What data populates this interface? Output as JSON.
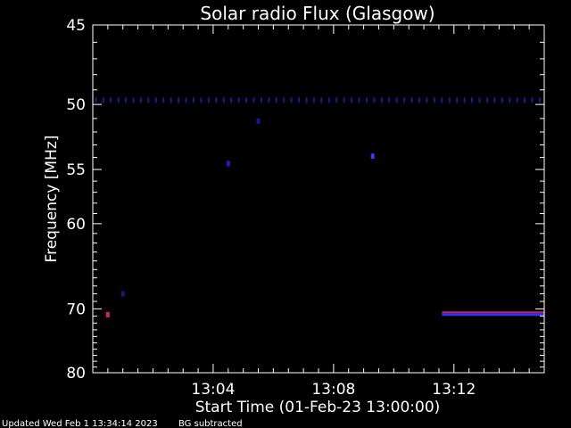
{
  "chart_data": {
    "type": "heatmap",
    "title": "Solar radio Flux (Glasgow)",
    "xlabel": "Start Time (01-Feb-23 13:00:00)",
    "ylabel": "Frequency [MHz]",
    "x_unit": "minutes after 13:00:00",
    "xlim": [
      0,
      15
    ],
    "ylim": [
      80,
      45
    ],
    "x_ticks": [
      {
        "value": 4,
        "label": "13:04"
      },
      {
        "value": 8,
        "label": "13:08"
      },
      {
        "value": 12,
        "label": "13:12"
      }
    ],
    "y_ticks": [
      {
        "value": 45,
        "label": "45"
      },
      {
        "value": 50,
        "label": "50"
      },
      {
        "value": 55,
        "label": "55"
      },
      {
        "value": 60,
        "label": "60"
      },
      {
        "value": 70,
        "label": "70"
      },
      {
        "value": 80,
        "label": "80"
      }
    ],
    "background_color": "#000000",
    "features": [
      {
        "name": "periodic-dots-50MHz",
        "type": "dotted-band",
        "freq": 49.7,
        "x_start": 0,
        "x_end": 15,
        "spacing": 0.25,
        "color": "#1a1aa0"
      },
      {
        "name": "blip-1",
        "type": "spot",
        "time": 0.5,
        "freq": 70.8,
        "color": "#d0207a"
      },
      {
        "name": "blip-2",
        "type": "spot",
        "time": 9.3,
        "freq": 53.9,
        "color": "#3a3aff"
      },
      {
        "name": "blip-3",
        "type": "spot",
        "time": 4.5,
        "freq": 54.5,
        "color": "#2020c0"
      },
      {
        "name": "blip-4",
        "type": "spot",
        "time": 5.5,
        "freq": 51.2,
        "color": "#181890"
      },
      {
        "name": "blip-5",
        "type": "spot",
        "time": 1.0,
        "freq": 68.0,
        "color": "#181880"
      },
      {
        "name": "band-70.5MHz",
        "type": "band",
        "freq": 70.6,
        "time_start": 11.6,
        "time_end": 15,
        "colors": [
          "#c8205a",
          "#3030ff"
        ]
      }
    ]
  },
  "footer": {
    "updated": "Updated Wed Feb  1 13:34:14 2023",
    "note": "BG subtracted"
  }
}
